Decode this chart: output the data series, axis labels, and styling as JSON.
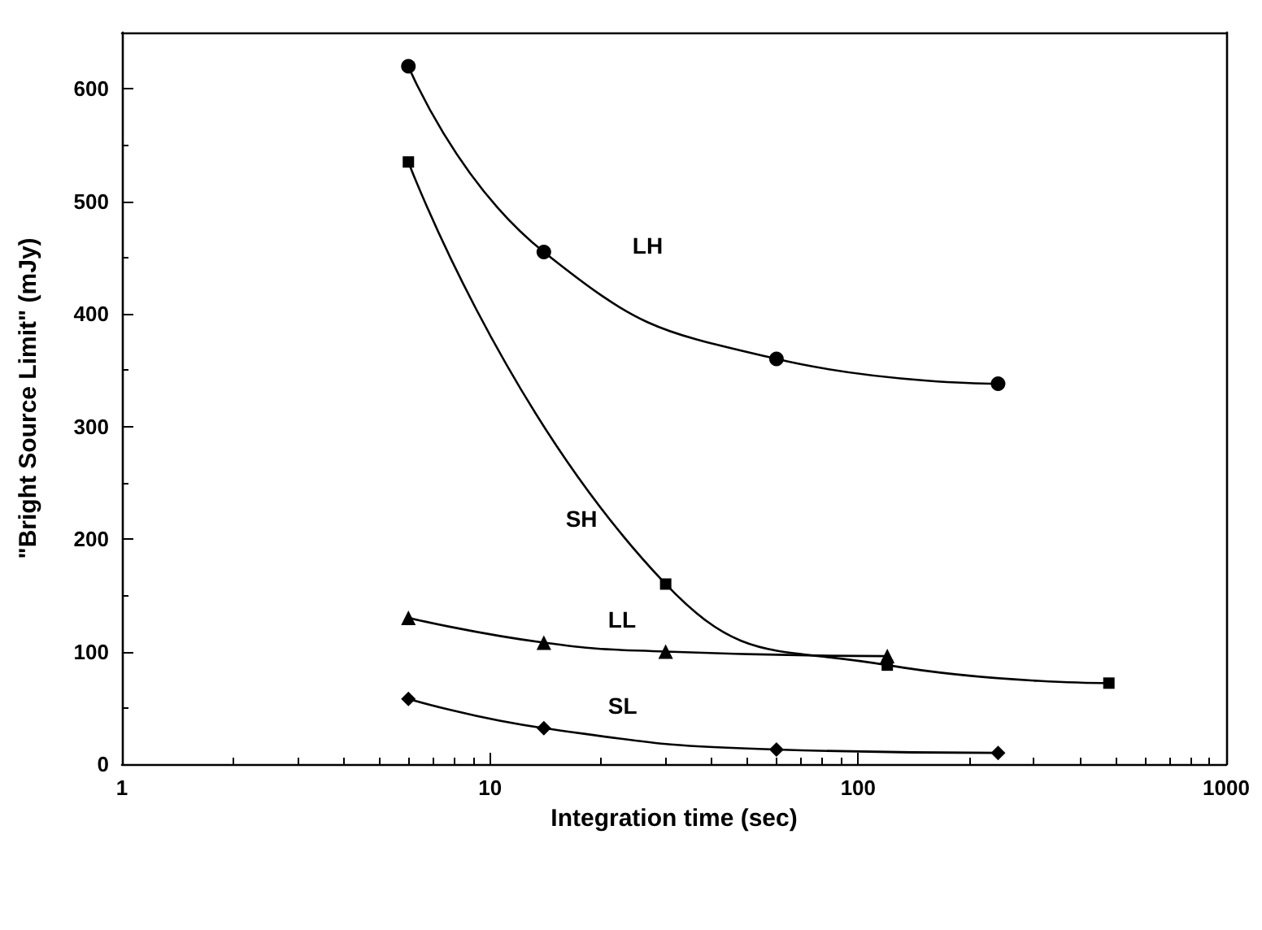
{
  "chart_data": {
    "type": "line",
    "xlabel": "Integration time (sec)",
    "ylabel": "\"Bright Source Limit\" (mJy)",
    "log": "x",
    "xlim": [
      1,
      1000
    ],
    "xticks": [
      1,
      10,
      100,
      1000
    ],
    "ylim": [
      0,
      650
    ],
    "yticks": [
      0,
      100,
      200,
      300,
      400,
      500,
      600
    ],
    "grid": false,
    "legend": false,
    "series": [
      {
        "name": "LH",
        "color": "#000000",
        "marker": "circle",
        "x": [
          6,
          14,
          60,
          240
        ],
        "values": [
          620,
          455,
          360,
          338
        ]
      },
      {
        "name": "SH",
        "color": "#000000",
        "marker": "square",
        "x": [
          6,
          30,
          120,
          480
        ],
        "values": [
          535,
          160,
          88,
          72
        ]
      },
      {
        "name": "LL",
        "color": "#000000",
        "marker": "triangle",
        "x": [
          6,
          14,
          30,
          120
        ],
        "values": [
          130,
          108,
          100,
          96
        ]
      },
      {
        "name": "SL",
        "color": "#000000",
        "marker": "diamond",
        "x": [
          6,
          14,
          60,
          240
        ],
        "values": [
          58,
          32,
          13,
          10
        ]
      }
    ]
  }
}
